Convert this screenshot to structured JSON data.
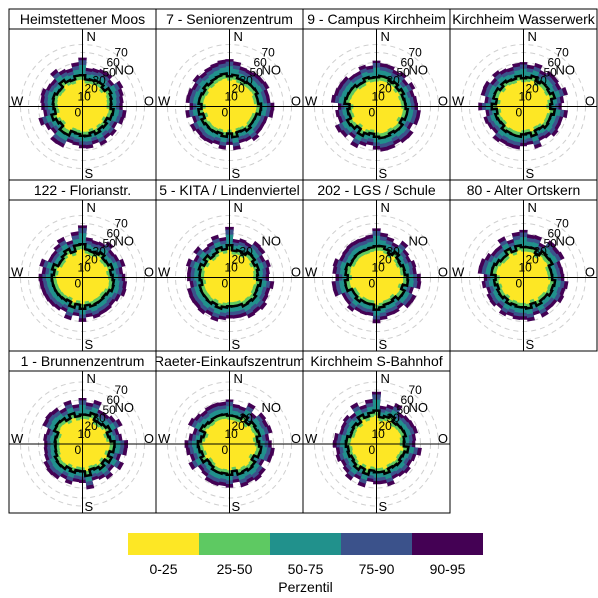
{
  "chart_data": {
    "type": "polar-percentile-rose",
    "panels": [
      {
        "title": "Heimstettener Moos",
        "labels": {
          "N": "N",
          "NO": "NO",
          "O": "O",
          "W": "W",
          "S": "S"
        },
        "r_ticks": [
          "0",
          "10",
          "20",
          "30",
          "50",
          "60",
          "70"
        ]
      },
      {
        "title": "7 - Seniorenzentrum",
        "labels": {
          "N": "N",
          "NO": "NO",
          "O": "O",
          "W": "W",
          "S": "S"
        },
        "r_ticks": [
          "0",
          "10",
          "20",
          "30",
          "50",
          "60",
          "70"
        ]
      },
      {
        "title": "9 - Campus Kirchheim",
        "labels": {
          "N": "N",
          "NO": "NO",
          "O": "O",
          "W": "W",
          "S": "S"
        },
        "r_ticks": [
          "0",
          "10",
          "20",
          "30",
          "50",
          "60",
          "70"
        ]
      },
      {
        "title": "Kirchheim Wasserwerk",
        "labels": {
          "N": "N",
          "NO": "NO",
          "O": "O",
          "W": "W",
          "S": "S"
        },
        "r_ticks": [
          "0",
          "10",
          "20",
          "30",
          "50",
          "60",
          "70"
        ]
      },
      {
        "title": "122 - Florianstr.",
        "labels": {
          "N": "N",
          "NO": "NO",
          "O": "O",
          "W": "W",
          "S": "S"
        },
        "r_ticks": [
          "0",
          "10",
          "20",
          "30",
          "50",
          "60",
          "70"
        ]
      },
      {
        "title": "5 - KITA / Lindenviertel",
        "labels": {
          "N": "N",
          "NO": "NO",
          "O": "O",
          "W": "W",
          "S": "S"
        },
        "r_ticks": [
          "0",
          "10",
          "20",
          "30"
        ]
      },
      {
        "title": "202 - LGS / Schule",
        "labels": {
          "N": "N",
          "NO": "NO",
          "O": "O",
          "W": "W",
          "S": "S"
        },
        "r_ticks": [
          "0",
          "10",
          "20",
          "30"
        ]
      },
      {
        "title": "80 - Alter Ortskern",
        "labels": {
          "N": "N",
          "NO": "NO",
          "O": "O",
          "W": "W",
          "S": "S"
        },
        "r_ticks": [
          "0",
          "10",
          "20",
          "30",
          "50",
          "60",
          "70"
        ]
      },
      {
        "title": "1 - Brunnenzentrum",
        "labels": {
          "N": "N",
          "NO": "NO",
          "O": "O",
          "W": "W",
          "S": "S"
        },
        "r_ticks": [
          "0",
          "10",
          "20",
          "30",
          "50",
          "60",
          "70"
        ]
      },
      {
        "title": "Raeter-Einkaufszentrum",
        "labels": {
          "N": "N",
          "NO": "NO",
          "O": "O",
          "W": "W",
          "S": "S"
        },
        "r_ticks": [
          "0",
          "10",
          "20",
          "30"
        ]
      },
      {
        "title": "Kirchheim S-Bahnhof",
        "labels": {
          "N": "N",
          "NO": "NO",
          "O": "O",
          "W": "W",
          "S": "S"
        },
        "r_ticks": [
          "0",
          "10",
          "20",
          "30",
          "50",
          "60",
          "70"
        ]
      }
    ],
    "legend": {
      "title": "Perzentil",
      "items": [
        {
          "label": "0-25",
          "color": "#fde725"
        },
        {
          "label": "25-50",
          "color": "#5ec962"
        },
        {
          "label": "50-75",
          "color": "#21918c"
        },
        {
          "label": "75-90",
          "color": "#3b528b"
        },
        {
          "label": "90-95",
          "color": "#440154"
        }
      ]
    },
    "median_line_color": "#000000"
  }
}
